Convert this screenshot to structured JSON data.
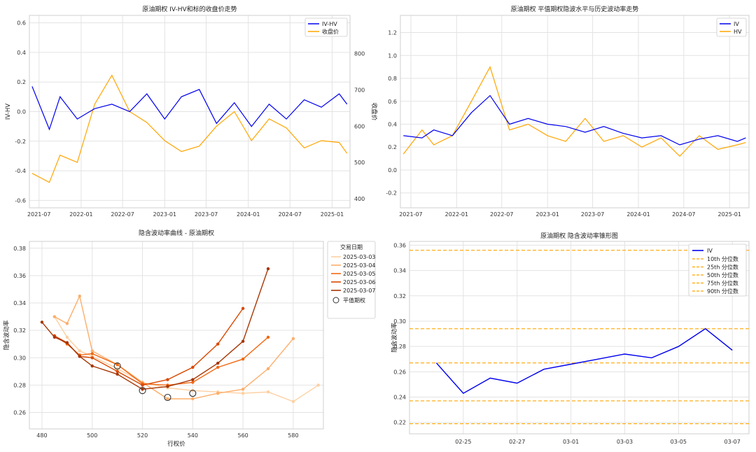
{
  "colors": {
    "iv": "#0000ee",
    "hv": "#ffa500",
    "left_axis_red": "#d62728",
    "left_axis_blue": "#1f77b4",
    "quantile": "#ffa500"
  },
  "chart_data": [
    {
      "panel": "iv_hv_spread_vs_close",
      "type": "line",
      "title": "原油期权 IV-HV和标的收盘价走势",
      "xlabel": "",
      "ylabel_left": "IV-HV",
      "ylabel_right": "收盘价",
      "x_ticks": [
        "2021-07",
        "2022-01",
        "2022-07",
        "2023-01",
        "2023-07",
        "2024-01",
        "2024-07",
        "2025-01"
      ],
      "y_left_ticks": [
        "-0.6",
        "-0.4",
        "-0.2",
        "0.0",
        "0.2",
        "0.4",
        "0.6"
      ],
      "y_right_ticks": [
        "400",
        "500",
        "600",
        "700",
        "800"
      ],
      "ylim_left": [
        -0.65,
        0.65
      ],
      "ylim_right": [
        375,
        905
      ],
      "legend": [
        "IV-HV",
        "收盘价"
      ],
      "legend_position": "top-right",
      "grid": true,
      "series": [
        {
          "name": "IV-HV",
          "axis": "left",
          "color": "#0000ee",
          "x": [
            "2021-06-01",
            "2021-08-15",
            "2021-10-01",
            "2021-12-15",
            "2022-03-01",
            "2022-05-15",
            "2022-08-01",
            "2022-10-15",
            "2023-01-01",
            "2023-03-15",
            "2023-06-01",
            "2023-08-15",
            "2023-11-01",
            "2024-01-15",
            "2024-04-01",
            "2024-06-15",
            "2024-09-01",
            "2024-11-15",
            "2025-02-01",
            "2025-03-07"
          ],
          "y": [
            0.17,
            -0.12,
            0.1,
            -0.05,
            0.02,
            0.05,
            0.0,
            0.12,
            -0.05,
            0.1,
            0.15,
            -0.08,
            0.06,
            -0.1,
            0.05,
            -0.05,
            0.08,
            0.03,
            0.12,
            0.05
          ]
        },
        {
          "name": "收盘价",
          "axis": "right",
          "color": "#ffa500",
          "x": [
            "2021-06-01",
            "2021-08-15",
            "2021-10-01",
            "2021-12-15",
            "2022-03-01",
            "2022-05-15",
            "2022-08-01",
            "2022-10-15",
            "2023-01-01",
            "2023-03-15",
            "2023-06-01",
            "2023-08-15",
            "2023-11-01",
            "2024-01-15",
            "2024-04-01",
            "2024-06-15",
            "2024-09-01",
            "2024-11-15",
            "2025-02-01",
            "2025-03-07"
          ],
          "y": [
            470,
            445,
            520,
            500,
            660,
            740,
            640,
            610,
            560,
            530,
            545,
            600,
            640,
            560,
            620,
            595,
            540,
            560,
            555,
            525
          ]
        }
      ]
    },
    {
      "panel": "atm_iv_vs_hv",
      "type": "line",
      "title": "原油期权 平值期权隐波水平与历史波动率走势",
      "xlabel": "",
      "ylabel": "",
      "x_ticks": [
        "2021-07",
        "2022-01",
        "2022-07",
        "2023-01",
        "2023-07",
        "2024-01",
        "2024-07",
        "2025-01"
      ],
      "y_ticks": [
        "-0.2",
        "0.0",
        "0.2",
        "0.4",
        "0.6",
        "0.8",
        "1.0",
        "1.2"
      ],
      "ylim": [
        -0.33,
        1.35
      ],
      "legend": [
        "IV",
        "HV"
      ],
      "legend_position": "top-right",
      "grid": true,
      "series": [
        {
          "name": "IV",
          "color": "#0000ee",
          "x": [
            "2021-06-01",
            "2021-08-15",
            "2021-10-01",
            "2021-12-15",
            "2022-03-01",
            "2022-05-15",
            "2022-08-01",
            "2022-10-15",
            "2023-01-01",
            "2023-03-15",
            "2023-06-01",
            "2023-08-15",
            "2023-11-01",
            "2024-01-15",
            "2024-04-01",
            "2024-06-15",
            "2024-09-01",
            "2024-11-15",
            "2025-02-01",
            "2025-03-07"
          ],
          "y": [
            0.3,
            0.28,
            0.35,
            0.3,
            0.5,
            0.65,
            0.4,
            0.45,
            0.4,
            0.38,
            0.33,
            0.38,
            0.32,
            0.28,
            0.3,
            0.22,
            0.27,
            0.3,
            0.25,
            0.28
          ]
        },
        {
          "name": "HV",
          "color": "#ffa500",
          "x": [
            "2021-06-01",
            "2021-08-15",
            "2021-10-01",
            "2021-12-15",
            "2022-03-01",
            "2022-05-15",
            "2022-08-01",
            "2022-10-15",
            "2023-01-01",
            "2023-03-15",
            "2023-06-01",
            "2023-08-15",
            "2023-11-01",
            "2024-01-15",
            "2024-04-01",
            "2024-06-15",
            "2024-09-01",
            "2024-11-15",
            "2025-02-01",
            "2025-03-07"
          ],
          "y": [
            0.14,
            0.35,
            0.22,
            0.3,
            0.6,
            0.9,
            0.35,
            0.4,
            0.3,
            0.25,
            0.45,
            0.25,
            0.3,
            0.2,
            0.28,
            0.12,
            0.3,
            0.18,
            0.22,
            0.24
          ]
        }
      ]
    },
    {
      "panel": "iv_smile",
      "type": "line",
      "title": "隐含波动率曲线 - 原油期权",
      "xlabel": "行权价",
      "ylabel": "隐含波动率",
      "x_ticks": [
        "480",
        "500",
        "520",
        "540",
        "560",
        "580"
      ],
      "y_ticks": [
        "0.26",
        "0.28",
        "0.30",
        "0.32",
        "0.34",
        "0.36",
        "0.38"
      ],
      "xlim": [
        475,
        592
      ],
      "ylim": [
        0.248,
        0.385
      ],
      "legend_title": "交易日期",
      "legend_position": "top-right",
      "grid": true,
      "series": [
        {
          "name": "2025-03-03",
          "color": "#fdd0a2",
          "x": [
            485,
            490,
            495,
            500,
            510,
            520,
            530,
            540,
            550,
            560,
            570,
            580,
            590
          ],
          "y": [
            0.33,
            0.315,
            0.305,
            0.301,
            0.292,
            0.282,
            0.278,
            0.276,
            0.275,
            0.274,
            0.275,
            0.268,
            0.28
          ]
        },
        {
          "name": "2025-03-04",
          "color": "#fdae6b",
          "x": [
            485,
            490,
            495,
            500,
            510,
            520,
            530,
            540,
            550,
            560,
            570,
            580
          ],
          "y": [
            0.33,
            0.325,
            0.345,
            0.305,
            0.295,
            0.282,
            0.27,
            0.27,
            0.274,
            0.277,
            0.292,
            0.314
          ]
        },
        {
          "name": "2025-03-05",
          "color": "#f16913",
          "x": [
            485,
            490,
            495,
            500,
            510,
            520,
            530,
            540,
            550,
            560,
            570
          ],
          "y": [
            0.316,
            0.31,
            0.302,
            0.303,
            0.295,
            0.281,
            0.28,
            0.282,
            0.293,
            0.299,
            0.315
          ]
        },
        {
          "name": "2025-03-06",
          "color": "#d94801",
          "x": [
            485,
            490,
            495,
            500,
            510,
            520,
            530,
            540,
            550,
            560
          ],
          "y": [
            0.316,
            0.311,
            0.301,
            0.3,
            0.29,
            0.28,
            0.284,
            0.293,
            0.31,
            0.336
          ]
        },
        {
          "name": "2025-03-07",
          "color": "#a63603",
          "x": [
            480,
            485,
            490,
            495,
            500,
            510,
            520,
            530,
            540,
            550,
            560,
            570
          ],
          "y": [
            0.326,
            0.315,
            0.311,
            0.301,
            0.294,
            0.288,
            0.277,
            0.279,
            0.284,
            0.296,
            0.312,
            0.365
          ]
        }
      ],
      "atm_points_label": "平值期权",
      "atm_points": [
        {
          "x": 510,
          "y": 0.294
        },
        {
          "x": 520,
          "y": 0.276
        },
        {
          "x": 530,
          "y": 0.271
        },
        {
          "x": 540,
          "y": 0.274
        }
      ]
    },
    {
      "panel": "iv_cone",
      "type": "line",
      "title": "原油期权 隐含波动率锥形图",
      "xlabel": "",
      "ylabel": "隐含波动率",
      "x_ticks": [
        "02-25",
        "02-27",
        "03-01",
        "03-03",
        "03-05",
        "03-07"
      ],
      "y_ticks": [
        "0.22",
        "0.24",
        "0.26",
        "0.28",
        "0.30",
        "0.32",
        "0.34",
        "0.36"
      ],
      "ylim": [
        0.211,
        0.363
      ],
      "legend_position": "top-right",
      "grid": true,
      "series": [
        {
          "name": "IV",
          "color": "#0000ee",
          "x": [
            "02-24",
            "02-25",
            "02-26",
            "02-27",
            "02-28",
            "03-01",
            "03-02",
            "03-03",
            "03-04",
            "03-05",
            "03-06",
            "03-07"
          ],
          "y": [
            0.267,
            0.243,
            0.255,
            0.251,
            0.262,
            0.266,
            0.27,
            0.274,
            0.271,
            0.28,
            0.294,
            0.277
          ]
        }
      ],
      "quantiles": [
        {
          "name": "10th 分位数",
          "value": 0.219
        },
        {
          "name": "25th 分位数",
          "value": 0.237
        },
        {
          "name": "50th 分位数",
          "value": 0.267
        },
        {
          "name": "75th 分位数",
          "value": 0.294
        },
        {
          "name": "90th 分位数",
          "value": 0.356
        }
      ]
    }
  ]
}
